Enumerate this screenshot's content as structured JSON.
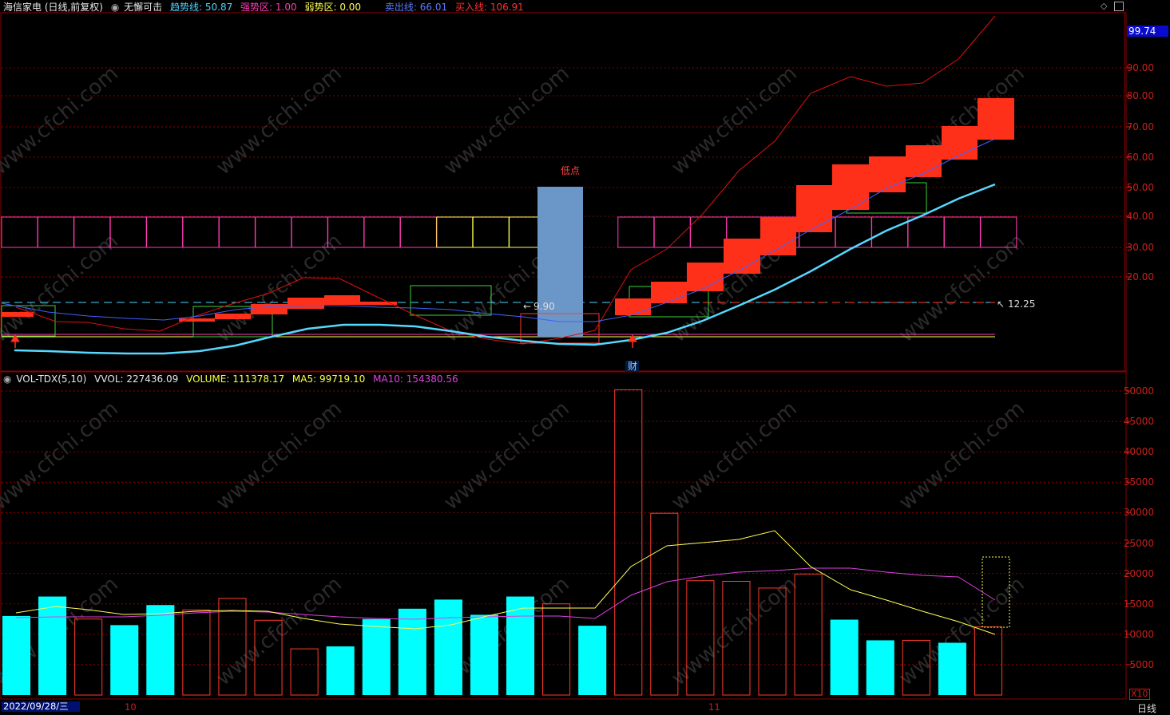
{
  "header": {
    "title": "海信家电 (日线,前复权)",
    "indicator": "无懈可击",
    "trend_label": "趋势线:",
    "trend_value": "50.87",
    "strong_label": "强势区:",
    "strong_value": "1.00",
    "weak_label": "弱势区:",
    "weak_value": "0.00",
    "sell_label": "卖出线:",
    "sell_value": "66.01",
    "buy_label": "买入线:",
    "buy_value": "106.91",
    "right_price": "99.74"
  },
  "vol_header": {
    "name": "VOL-TDX(5,10)",
    "vvol": "VVOL: 227436.09",
    "volume": "VOLUME: 111378.17",
    "ma5": "MA5: 99719.10",
    "ma10": "MA10: 154380.56"
  },
  "annotations": {
    "low_point": "低点",
    "low_value": "9.90",
    "high_value": "12.25",
    "cai": "财"
  },
  "footer": {
    "date": "2022/09/28/三",
    "month_10": "10",
    "month_11": "11",
    "period": "日线",
    "x10": "X10"
  },
  "price_axis": [
    "90.00",
    "80.00",
    "70.00",
    "60.00",
    "50.00",
    "40.00",
    "30.00",
    "20.00"
  ],
  "volume_axis": [
    "50000",
    "45000",
    "40000",
    "35000",
    "30000",
    "25000",
    "20000",
    "15000",
    "10000",
    "5000"
  ],
  "volume_bars": [
    {
      "v": 13000,
      "up": true
    },
    {
      "v": 16200,
      "up": true
    },
    {
      "v": 12500,
      "up": false
    },
    {
      "v": 11500,
      "up": true
    },
    {
      "v": 14800,
      "up": true
    },
    {
      "v": 14000,
      "up": false
    },
    {
      "v": 15900,
      "up": false
    },
    {
      "v": 12300,
      "up": false
    },
    {
      "v": 7600,
      "up": false
    },
    {
      "v": 8000,
      "up": true
    },
    {
      "v": 12500,
      "up": true
    },
    {
      "v": 14200,
      "up": true
    },
    {
      "v": 15700,
      "up": true
    },
    {
      "v": 13200,
      "up": true
    },
    {
      "v": 16200,
      "up": true
    },
    {
      "v": 15000,
      "up": false
    },
    {
      "v": 11400,
      "up": true
    },
    {
      "v": 50200,
      "up": false
    },
    {
      "v": 29900,
      "up": false
    },
    {
      "v": 18800,
      "up": false
    },
    {
      "v": 18700,
      "up": false
    },
    {
      "v": 17600,
      "up": false
    },
    {
      "v": 19900,
      "up": false
    },
    {
      "v": 12400,
      "up": true
    },
    {
      "v": 9000,
      "up": true
    },
    {
      "v": 9000,
      "up": false
    },
    {
      "v": 8600,
      "up": true
    },
    {
      "v": 11200,
      "up": false
    }
  ],
  "colors": {
    "up": "#00ffff",
    "down": "#ff3c2c",
    "grid": "#8a0000",
    "ma5": "#ffff55",
    "ma10": "#e040e0",
    "trend": "#56d8ff",
    "box_pink": "#ff3cb4"
  }
}
